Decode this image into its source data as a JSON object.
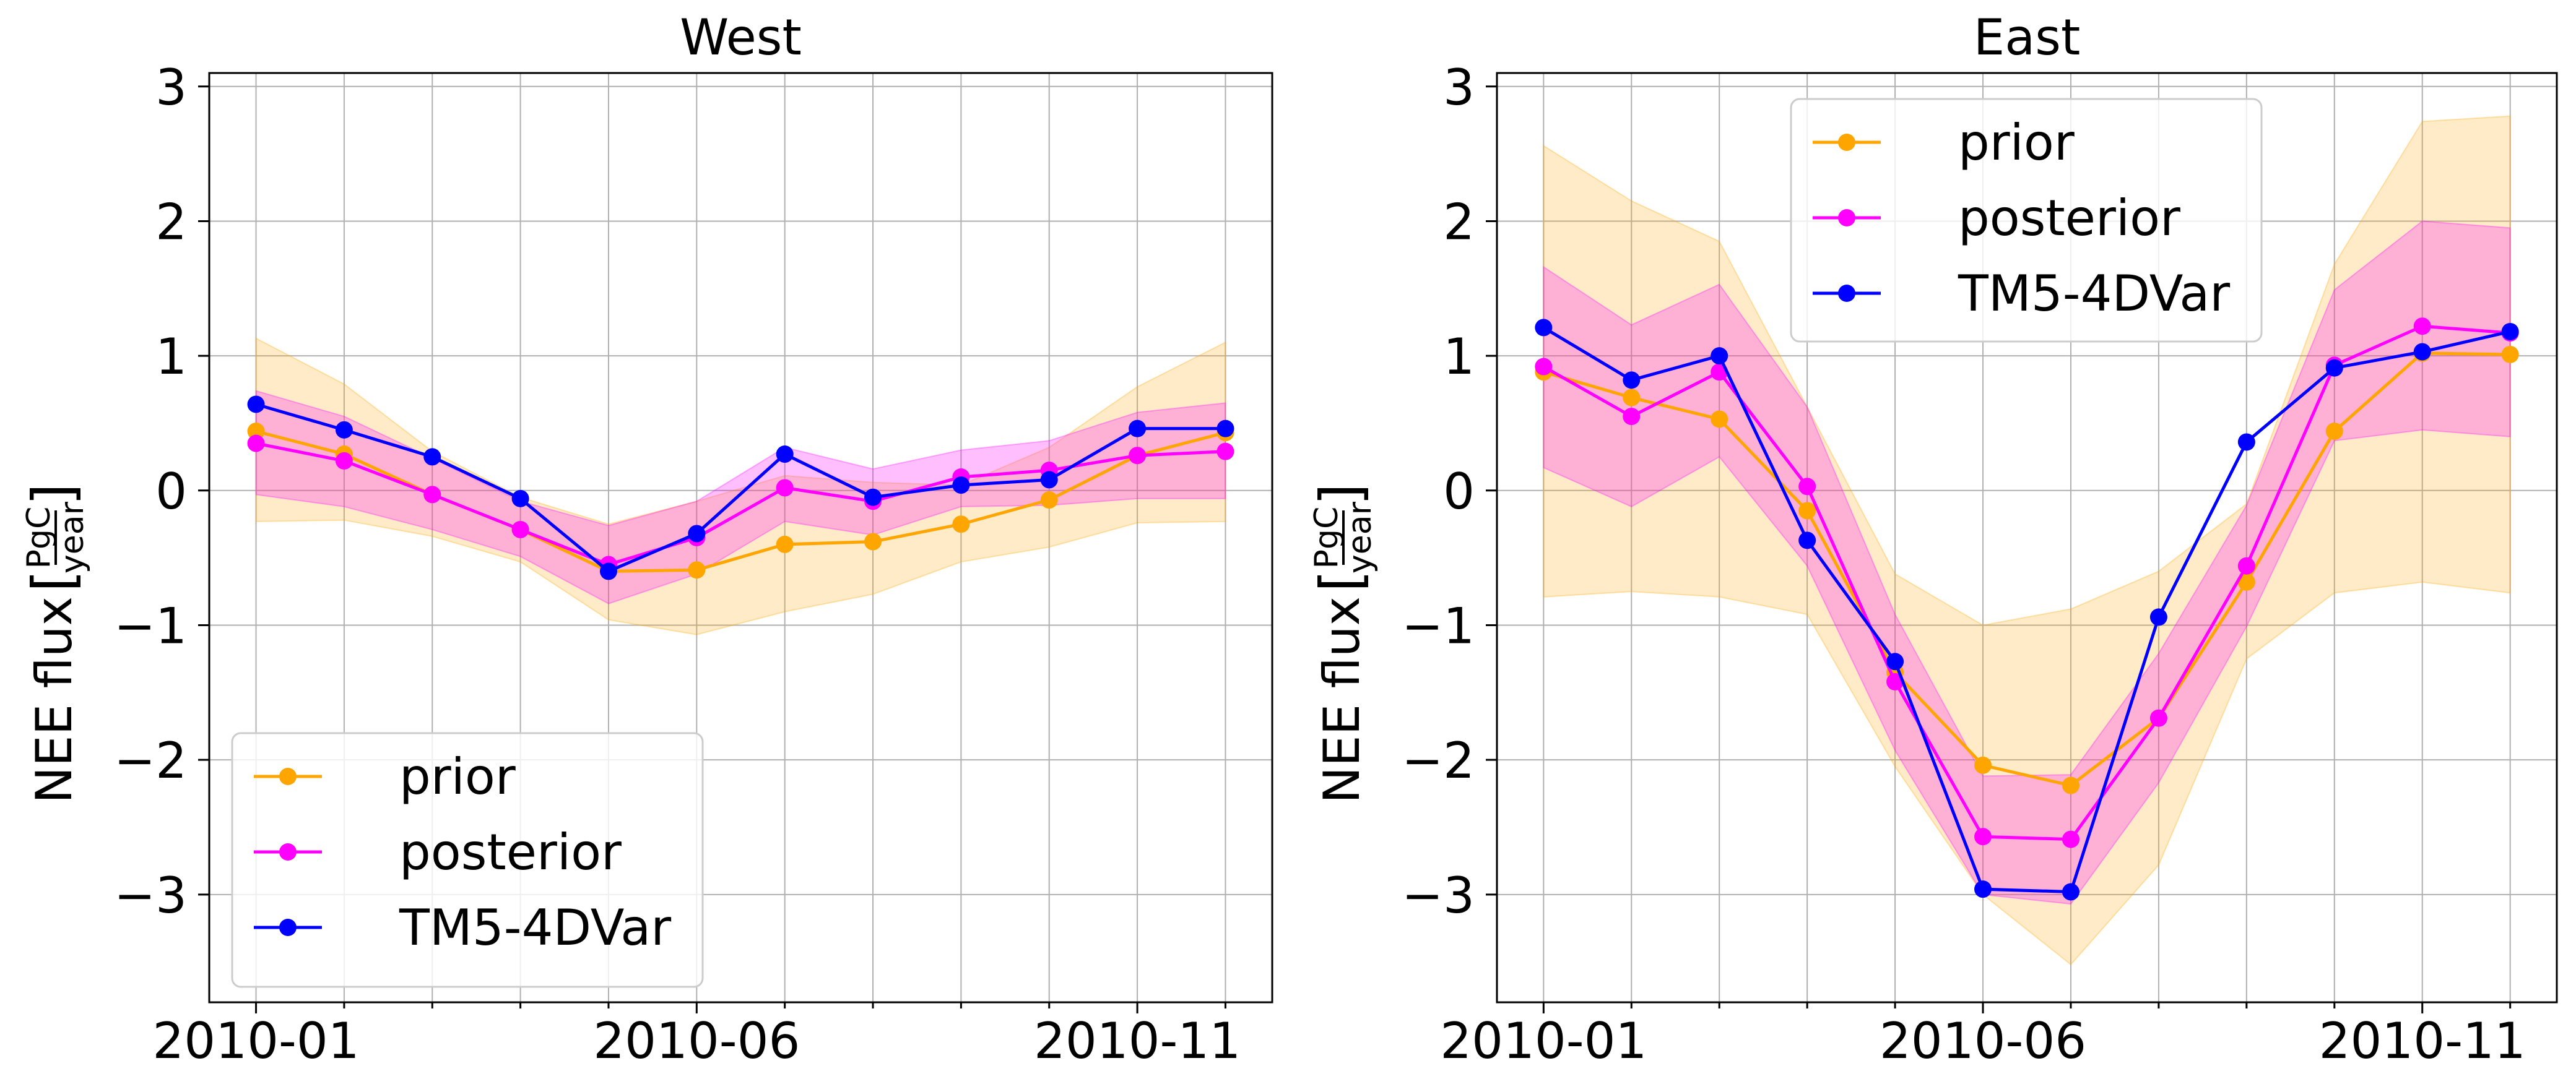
{
  "chart_data": [
    {
      "type": "line",
      "title": "West",
      "xlabel": "",
      "ylabel": "NEE flux [PgC/year]",
      "ylabel_prefix": "NEE flux",
      "unit_numerator": "PgC",
      "unit_denominator": "year",
      "x": [
        "2010-01",
        "2010-02",
        "2010-03",
        "2010-04",
        "2010-05",
        "2010-06",
        "2010-07",
        "2010-08",
        "2010-09",
        "2010-10",
        "2010-11",
        "2010-12"
      ],
      "xtick_labels": [
        "2010-01",
        "2010-06",
        "2010-11"
      ],
      "yticks": [
        -3,
        -2,
        -1,
        0,
        1,
        2,
        3
      ],
      "ytick_labels": [
        "−3",
        "−2",
        "−1",
        "0",
        "1",
        "2",
        "3"
      ],
      "ylim": [
        -3.8,
        3.1
      ],
      "grid": true,
      "legend_position": "lower-left",
      "series": [
        {
          "name": "prior",
          "color": "#FFA500",
          "values": [
            0.44,
            0.27,
            -0.03,
            -0.29,
            -0.6,
            -0.59,
            -0.4,
            -0.38,
            -0.25,
            -0.07,
            0.26,
            0.43
          ],
          "band_lower": [
            -0.23,
            -0.22,
            -0.34,
            -0.53,
            -0.96,
            -1.07,
            -0.9,
            -0.77,
            -0.53,
            -0.42,
            -0.24,
            -0.23
          ],
          "band_upper": [
            1.13,
            0.79,
            0.29,
            -0.05,
            -0.25,
            -0.08,
            0.11,
            0.06,
            0.04,
            0.32,
            0.77,
            1.1
          ]
        },
        {
          "name": "posterior",
          "color": "#FF00FF",
          "values": [
            0.35,
            0.22,
            -0.03,
            -0.29,
            -0.55,
            -0.35,
            0.02,
            -0.08,
            0.1,
            0.15,
            0.26,
            0.29
          ],
          "band_lower": [
            -0.03,
            -0.12,
            -0.29,
            -0.49,
            -0.84,
            -0.62,
            -0.23,
            -0.33,
            -0.12,
            -0.11,
            -0.06,
            -0.06
          ],
          "band_upper": [
            0.74,
            0.55,
            0.24,
            -0.08,
            -0.26,
            -0.08,
            0.32,
            0.16,
            0.3,
            0.37,
            0.58,
            0.65
          ]
        },
        {
          "name": "TM5-4DVar",
          "color": "#0000FF",
          "values": [
            0.64,
            0.45,
            0.25,
            -0.06,
            -0.6,
            -0.32,
            0.27,
            -0.05,
            0.04,
            0.08,
            0.46,
            0.46
          ]
        }
      ]
    },
    {
      "type": "line",
      "title": "East",
      "xlabel": "",
      "ylabel": "NEE flux [PgC/year]",
      "ylabel_prefix": "NEE flux",
      "unit_numerator": "PgC",
      "unit_denominator": "year",
      "x": [
        "2010-01",
        "2010-02",
        "2010-03",
        "2010-04",
        "2010-05",
        "2010-06",
        "2010-07",
        "2010-08",
        "2010-09",
        "2010-10",
        "2010-11",
        "2010-12"
      ],
      "xtick_labels": [
        "2010-01",
        "2010-06",
        "2010-11"
      ],
      "yticks": [
        -3,
        -2,
        -1,
        0,
        1,
        2,
        3
      ],
      "ytick_labels": [
        "−3",
        "−2",
        "−1",
        "0",
        "1",
        "2",
        "3"
      ],
      "ylim": [
        -3.8,
        3.1
      ],
      "grid": true,
      "legend_position": "upper-center",
      "series": [
        {
          "name": "prior",
          "color": "#FFA500",
          "values": [
            0.88,
            0.69,
            0.53,
            -0.15,
            -1.35,
            -2.04,
            -2.19,
            -1.69,
            -0.68,
            0.44,
            1.02,
            1.01
          ],
          "band_lower": [
            -0.79,
            -0.75,
            -0.79,
            -0.92,
            -2.05,
            -3.0,
            -3.52,
            -2.78,
            -1.25,
            -0.76,
            -0.68,
            -0.76
          ],
          "band_upper": [
            2.56,
            2.15,
            1.85,
            0.62,
            -0.62,
            -1.0,
            -0.88,
            -0.6,
            -0.1,
            1.68,
            2.74,
            2.78
          ]
        },
        {
          "name": "posterior",
          "color": "#FF00FF",
          "values": [
            0.92,
            0.55,
            0.88,
            0.03,
            -1.42,
            -2.57,
            -2.59,
            -1.69,
            -0.56,
            0.93,
            1.22,
            1.17
          ],
          "band_lower": [
            0.17,
            -0.12,
            0.25,
            -0.56,
            -1.93,
            -3.0,
            -3.07,
            -2.17,
            -1.01,
            0.37,
            0.45,
            0.4
          ],
          "band_upper": [
            1.66,
            1.23,
            1.53,
            0.62,
            -0.92,
            -2.12,
            -2.11,
            -1.21,
            -0.11,
            1.49,
            2.0,
            1.95
          ]
        },
        {
          "name": "TM5-4DVar",
          "color": "#0000FF",
          "values": [
            1.21,
            0.82,
            1.0,
            -0.37,
            -1.27,
            -2.96,
            -2.98,
            -0.94,
            0.36,
            0.91,
            1.03,
            1.18
          ]
        }
      ]
    }
  ]
}
